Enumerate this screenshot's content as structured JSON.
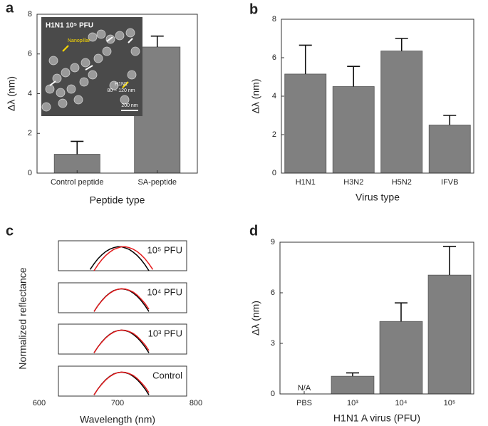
{
  "chart_data": [
    {
      "type": "bar",
      "label": "a",
      "categories": [
        "Control peptide",
        "SA-peptide"
      ],
      "values": [
        0.95,
        6.35
      ],
      "errors": [
        0.65,
        0.55
      ],
      "ylim": [
        0,
        8
      ],
      "yticks": [
        0,
        2,
        4,
        6,
        8
      ],
      "y_label": "Δλ (nm)",
      "x_label": "Peptide type",
      "color": "#808080",
      "inset": {
        "title": "H1N1 10⁵ PFU",
        "pillar_label": "Nanopillar",
        "virus_label": "H1N1",
        "size_label": "80 ~ 120 nm",
        "scale_label": "200 nm"
      }
    },
    {
      "type": "bar",
      "label": "b",
      "categories": [
        "H1N1",
        "H3N2",
        "H5N2",
        "IFVB"
      ],
      "values": [
        5.15,
        4.5,
        6.35,
        2.5
      ],
      "errors": [
        1.5,
        1.05,
        0.65,
        0.5
      ],
      "ylim": [
        0,
        8
      ],
      "yticks": [
        0,
        2,
        4,
        6,
        8
      ],
      "y_label": "Δλ (nm)",
      "x_label": "Virus type",
      "color": "#808080"
    },
    {
      "type": "line",
      "label": "c",
      "x_label": "Wavelength (nm)",
      "y_label": "Normalized reflectance",
      "xlim": [
        600,
        800
      ],
      "xticks": [
        600,
        700,
        800
      ],
      "ylim": [
        0,
        1
      ],
      "x": [
        660,
        665,
        670,
        675,
        680,
        685,
        690,
        695,
        700,
        705,
        710,
        715,
        720,
        725,
        730,
        735,
        740,
        745,
        750
      ],
      "panels": [
        {
          "label": "10⁵ PFU",
          "series": [
            {
              "color": "#000000",
              "values": [
                null,
                0.04,
                0.23,
                0.4,
                0.53,
                0.64,
                0.72,
                0.77,
                0.8,
                0.8,
                0.76,
                0.71,
                0.62,
                0.51,
                0.37,
                0.2,
                0,
                null,
                null
              ]
            },
            {
              "color": "#e41a1c",
              "values": [
                null,
                null,
                0,
                0.2,
                0.37,
                0.51,
                0.62,
                0.71,
                0.76,
                0.8,
                0.8,
                0.77,
                0.72,
                0.64,
                0.53,
                0.4,
                0.23,
                0.04,
                null
              ]
            }
          ]
        },
        {
          "label": "10⁴ PFU",
          "series": [
            {
              "color": "#000000",
              "values": [
                null,
                null,
                0.04,
                0.24,
                0.41,
                0.55,
                0.66,
                0.74,
                0.78,
                0.8,
                0.78,
                0.74,
                0.66,
                0.55,
                0.41,
                0.24,
                0.04,
                null,
                null
              ]
            },
            {
              "color": "#e41a1c",
              "values": [
                null,
                null,
                0.04,
                0.24,
                0.4,
                0.54,
                0.65,
                0.73,
                0.78,
                0.8,
                0.79,
                0.75,
                0.69,
                0.59,
                0.46,
                0.31,
                0.12,
                null,
                null
              ]
            }
          ]
        },
        {
          "label": "10³ PFU",
          "series": [
            {
              "color": "#000000",
              "values": [
                null,
                null,
                0.04,
                0.24,
                0.41,
                0.55,
                0.66,
                0.74,
                0.78,
                0.8,
                0.78,
                0.74,
                0.66,
                0.55,
                0.41,
                0.24,
                0.04,
                null,
                null
              ]
            },
            {
              "color": "#e41a1c",
              "values": [
                null,
                null,
                0.04,
                0.24,
                0.4,
                0.54,
                0.65,
                0.73,
                0.78,
                0.8,
                0.79,
                0.75,
                0.69,
                0.59,
                0.46,
                0.31,
                0.12,
                null,
                null
              ]
            }
          ]
        },
        {
          "label": "Control",
          "series": [
            {
              "color": "#000000",
              "values": [
                null,
                null,
                0.04,
                0.24,
                0.41,
                0.55,
                0.66,
                0.74,
                0.78,
                0.8,
                0.78,
                0.74,
                0.66,
                0.55,
                0.41,
                0.24,
                0.04,
                null,
                null
              ]
            },
            {
              "color": "#e41a1c",
              "values": [
                null,
                null,
                0.04,
                0.24,
                0.4,
                0.54,
                0.65,
                0.73,
                0.78,
                0.8,
                0.79,
                0.75,
                0.69,
                0.59,
                0.46,
                0.31,
                0.12,
                null,
                null
              ]
            }
          ]
        }
      ]
    },
    {
      "type": "bar",
      "label": "d",
      "categories": [
        "PBS",
        "10³",
        "10⁴",
        "10⁵"
      ],
      "values": [
        null,
        1.05,
        4.3,
        7.05
      ],
      "value_labels": [
        "N/A",
        null,
        null,
        null
      ],
      "errors": [
        null,
        0.2,
        1.1,
        1.7
      ],
      "ylim": [
        0,
        9
      ],
      "yticks": [
        0,
        3,
        6,
        9
      ],
      "y_label": "Δλ (nm)",
      "x_label": "H1N1 A virus (PFU)",
      "color": "#808080"
    }
  ]
}
